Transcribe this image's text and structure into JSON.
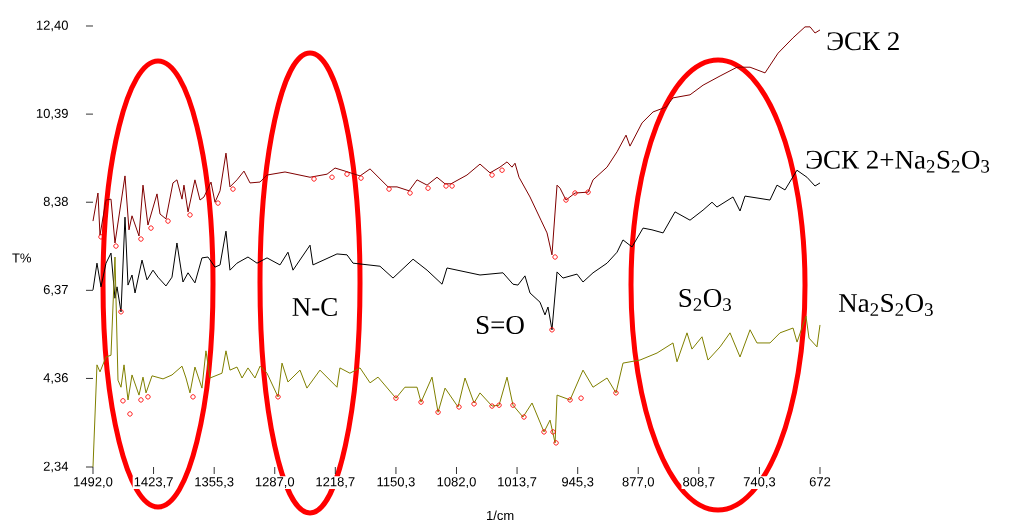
{
  "chart_data": {
    "type": "line",
    "xlabel": "1/cm",
    "ylabel": "T%",
    "xlim": [
      1492.0,
      672
    ],
    "ylim": [
      2.34,
      12.4
    ],
    "xticks": [
      {
        "value": 1492.0,
        "label": "1492,0"
      },
      {
        "value": 1423.7,
        "label": "1423,7"
      },
      {
        "value": 1355.3,
        "label": "1355,3"
      },
      {
        "value": 1287.0,
        "label": "1287,0"
      },
      {
        "value": 1218.7,
        "label": "1218,7"
      },
      {
        "value": 1150.3,
        "label": "1150,3"
      },
      {
        "value": 1082.0,
        "label": "1082,0"
      },
      {
        "value": 1013.7,
        "label": "1013,7"
      },
      {
        "value": 945.3,
        "label": "945,3"
      },
      {
        "value": 877.0,
        "label": "877,0"
      },
      {
        "value": 808.7,
        "label": "808,7"
      },
      {
        "value": 740.3,
        "label": "740,3"
      },
      672
    ],
    "yticks": [
      {
        "value": 2.34,
        "label": "2,34"
      },
      {
        "value": 4.36,
        "label": "4,36"
      },
      {
        "value": 6.37,
        "label": "6,37"
      },
      {
        "value": 8.38,
        "label": "8,38"
      },
      {
        "value": 10.39,
        "label": "10,39"
      },
      {
        "value": 12.4,
        "label": "12,40"
      }
    ],
    "legend": false,
    "annotations": [
      "N-C",
      "S=O",
      "S$_{2}$O$_{3}$"
    ],
    "series": [
      {
        "name": "ЭСК 2",
        "color": "#800000",
        "x": [
          1492.0,
          1486.4,
          1484.1,
          1477.3,
          1471.7,
          1467.2,
          1455.9,
          1451.4,
          1448.0,
          1440.1,
          1435.6,
          1430.0,
          1419.8,
          1416.4,
          1409.7,
          1401.8,
          1397.3,
          1391.6,
          1389.4,
          1384.8,
          1377.0,
          1371.3,
          1366.8,
          1358.9,
          1354.4,
          1348.7,
          1342.0,
          1337.5,
          1329.6,
          1321.7,
          1314.9,
          1303.6,
          1295.7,
          1275.4,
          1247.2,
          1228.0,
          1219.0,
          1207.7,
          1190.8,
          1179.5,
          1159.2,
          1149.1,
          1135.5,
          1126.5,
          1115.2,
          1104.0,
          1095.0,
          1088.2,
          1070.2,
          1055.5,
          1044.2,
          1033.0,
          1025.0,
          1019.4,
          1016.0,
          1011.5,
          999.1,
          986.7,
          979.9,
          974.3,
          968.6,
          965.2,
          958.5,
          948.3,
          933.6,
          928.0,
          912.2,
          900.9,
          890.8,
          886.3,
          872.7,
          860.3,
          845.7,
          837.8,
          818.6,
          803.9,
          784.7,
          765.6,
          750.9,
          734.0,
          719.3,
          702.4,
          688.9,
          683.2,
          677.6,
          672.0
        ],
        "values": [
          7.95,
          8.59,
          7.63,
          8.43,
          8.45,
          7.45,
          8.98,
          7.75,
          8.07,
          7.61,
          8.77,
          7.86,
          8.57,
          8.11,
          8.0,
          8.82,
          8.89,
          8.45,
          8.77,
          8.16,
          8.89,
          8.43,
          8.5,
          8.84,
          8.38,
          8.64,
          9.5,
          8.73,
          8.89,
          9.09,
          8.82,
          8.84,
          9.0,
          9.07,
          8.95,
          9.02,
          9.16,
          9.09,
          8.98,
          9.14,
          8.73,
          8.73,
          8.64,
          8.89,
          8.77,
          8.95,
          8.8,
          8.8,
          9.0,
          9.25,
          9.05,
          9.18,
          9.3,
          9.18,
          9.27,
          8.95,
          8.5,
          7.97,
          7.68,
          7.18,
          8.77,
          8.7,
          8.43,
          8.59,
          8.61,
          8.89,
          9.18,
          9.53,
          9.91,
          9.66,
          10.19,
          10.44,
          10.55,
          10.76,
          10.83,
          11.05,
          11.26,
          11.46,
          11.46,
          11.33,
          11.78,
          12.13,
          12.38,
          12.38,
          12.24,
          12.31
        ]
      },
      {
        "name": "ЭСК 2+Na$_{2}$S$_{2}$O$_{3}$",
        "color": "#000000",
        "x": [
          1492.0,
          1487.5,
          1483.0,
          1477.3,
          1471.7,
          1467.2,
          1464.9,
          1460.4,
          1455.9,
          1452.5,
          1448.0,
          1444.6,
          1436.7,
          1431.1,
          1424.3,
          1418.7,
          1409.7,
          1402.9,
          1397.3,
          1390.5,
          1384.8,
          1377.0,
          1369.1,
          1362.3,
          1354.4,
          1348.7,
          1342.0,
          1337.5,
          1329.6,
          1317.2,
          1307.0,
          1295.7,
          1281.1,
          1272.1,
          1266.4,
          1247.2,
          1243.9,
          1216.8,
          1205.5,
          1198.7,
          1168.3,
          1153.6,
          1131.0,
          1115.2,
          1098.3,
          1092.7,
          1055.5,
          1029.6,
          1018.3,
          1012.7,
          1004.8,
          999.1,
          987.8,
          982.2,
          978.8,
          974.3,
          968.6,
          961.9,
          946.1,
          939.3,
          928.0,
          912.2,
          900.9,
          894.2,
          884.0,
          871.6,
          861.5,
          849.0,
          835.5,
          818.6,
          803.9,
          793.8,
          788.2,
          770.1,
          762.2,
          756.6,
          728.4,
          720.5,
          711.5,
          698.0,
          686.7,
          677.6,
          672.0
        ],
        "values": [
          6.38,
          6.99,
          6.45,
          6.99,
          7.22,
          6.19,
          6.45,
          5.88,
          8.04,
          6.49,
          6.72,
          6.31,
          7.06,
          6.61,
          6.83,
          6.67,
          6.47,
          6.67,
          7.45,
          6.56,
          6.77,
          6.54,
          7.11,
          7.13,
          6.9,
          6.95,
          7.72,
          6.83,
          6.99,
          7.13,
          6.99,
          7.11,
          6.95,
          7.24,
          6.83,
          7.4,
          6.95,
          7.2,
          7.18,
          6.99,
          6.92,
          6.65,
          7.08,
          6.83,
          6.51,
          6.88,
          6.72,
          6.77,
          6.51,
          6.49,
          6.7,
          6.31,
          6.1,
          5.81,
          5.99,
          5.47,
          6.79,
          6.65,
          6.74,
          6.56,
          6.77,
          6.99,
          7.24,
          7.52,
          7.36,
          7.79,
          7.75,
          7.68,
          8.16,
          7.97,
          8.2,
          8.38,
          8.27,
          8.5,
          8.18,
          8.52,
          8.43,
          8.77,
          8.66,
          9.11,
          8.95,
          8.75,
          8.82
        ]
      },
      {
        "name": "Na$_{2}$S$_{2}$O$_{3}$",
        "color": "#808000",
        "x": [
          1492.0,
          1487.5,
          1484.1,
          1477.3,
          1471.7,
          1467.2,
          1463.8,
          1460.4,
          1457.0,
          1452.5,
          1448.0,
          1440.1,
          1435.6,
          1432.2,
          1425.4,
          1413.0,
          1402.9,
          1391.6,
          1387.1,
          1382.6,
          1377.0,
          1369.1,
          1364.6,
          1360.0,
          1346.5,
          1342.0,
          1337.5,
          1329.6,
          1323.9,
          1317.2,
          1309.3,
          1303.6,
          1295.7,
          1283.3,
          1278.8,
          1272.1,
          1258.5,
          1250.7,
          1236.0,
          1216.8,
          1213.5,
          1202.2,
          1190.8,
          1179.5,
          1170.5,
          1150.3,
          1140.2,
          1126.5,
          1122.0,
          1109.6,
          1102.8,
          1094.9,
          1080.3,
          1072.4,
          1062.2,
          1055.5,
          1041.9,
          1034.0,
          1025.0,
          1018.3,
          1007.0,
          996.8,
          983.3,
          976.5,
          970.8,
          968.6,
          953.9,
          939.3,
          928.0,
          912.2,
          902.1,
          894.2,
          875.0,
          855.8,
          837.8,
          833.3,
          822.0,
          816.4,
          805.1,
          798.3,
          784.7,
          773.5,
          762.2,
          750.9,
          743.1,
          728.4,
          717.1,
          702.4,
          697.9,
          687.8,
          684.4,
          675.4,
          672.0
        ],
        "values": [
          2.34,
          4.67,
          4.51,
          4.85,
          4.89,
          7.13,
          4.32,
          4.16,
          4.67,
          3.87,
          4.44,
          3.98,
          4.39,
          4.03,
          4.42,
          4.35,
          4.44,
          4.64,
          4.37,
          4.03,
          4.62,
          4.14,
          4.99,
          4.37,
          4.48,
          4.99,
          4.55,
          4.62,
          4.37,
          4.6,
          4.37,
          4.64,
          4.48,
          3.94,
          4.71,
          4.28,
          4.55,
          4.14,
          4.55,
          4.16,
          4.6,
          4.48,
          4.6,
          4.26,
          4.39,
          3.91,
          4.16,
          4.16,
          3.82,
          4.39,
          3.59,
          4.14,
          3.71,
          4.37,
          3.8,
          4.03,
          3.73,
          3.75,
          4.39,
          3.75,
          3.48,
          3.8,
          3.14,
          3.41,
          2.89,
          3.98,
          3.87,
          4.55,
          4.16,
          4.37,
          4.03,
          4.71,
          4.78,
          4.94,
          5.17,
          4.74,
          5.4,
          5.03,
          5.31,
          4.78,
          5.08,
          5.4,
          4.85,
          5.47,
          5.17,
          5.17,
          5.4,
          5.51,
          5.19,
          5.78,
          5.28,
          5.08,
          5.58
        ]
      },
      {
        "type": "scatter",
        "marker": "circle",
        "color": "#ff0000",
        "x": [
          1483.0,
          1466.1,
          1437.9,
          1426.6,
          1407.4,
          1382.6,
          1351.0,
          1334.1,
          1242.7,
          1222.4,
          1205.5,
          1189.7,
          1158.1,
          1134.4,
          1114.1,
          1093.8,
          1087.0,
          1041.9,
          1030.6,
          970.8,
          958.5,
          948.3,
          933.6
        ],
        "values": [
          7.59,
          7.38,
          7.54,
          7.79,
          7.95,
          8.09,
          8.36,
          8.68,
          8.91,
          8.95,
          9.02,
          8.93,
          8.68,
          8.59,
          8.7,
          8.75,
          8.75,
          9.0,
          9.11,
          7.13,
          8.43,
          8.59,
          8.61
        ]
      },
      {
        "type": "scatter",
        "marker": "circle",
        "color": "#ff0000",
        "x": [
          1460.4,
          974.3
        ],
        "values": [
          5.88,
          5.47
        ]
      },
      {
        "type": "scatter",
        "marker": "circle",
        "color": "#ff0000",
        "x": [
          1458.2,
          1450.3,
          1437.9,
          1430.0,
          1379.2,
          1283.3,
          1150.3,
          1122.0,
          1102.8,
          1079.2,
          1062.2,
          1041.9,
          1034.0,
          1018.3,
          1005.9,
          983.3,
          973.1,
          969.7,
          953.9,
          941.5,
          902.1
        ],
        "values": [
          3.85,
          3.55,
          3.87,
          3.94,
          3.94,
          3.94,
          3.91,
          3.82,
          3.59,
          3.71,
          3.78,
          3.73,
          3.75,
          3.75,
          3.48,
          3.14,
          3.14,
          2.89,
          3.87,
          3.91,
          4.03
        ]
      }
    ]
  }
}
